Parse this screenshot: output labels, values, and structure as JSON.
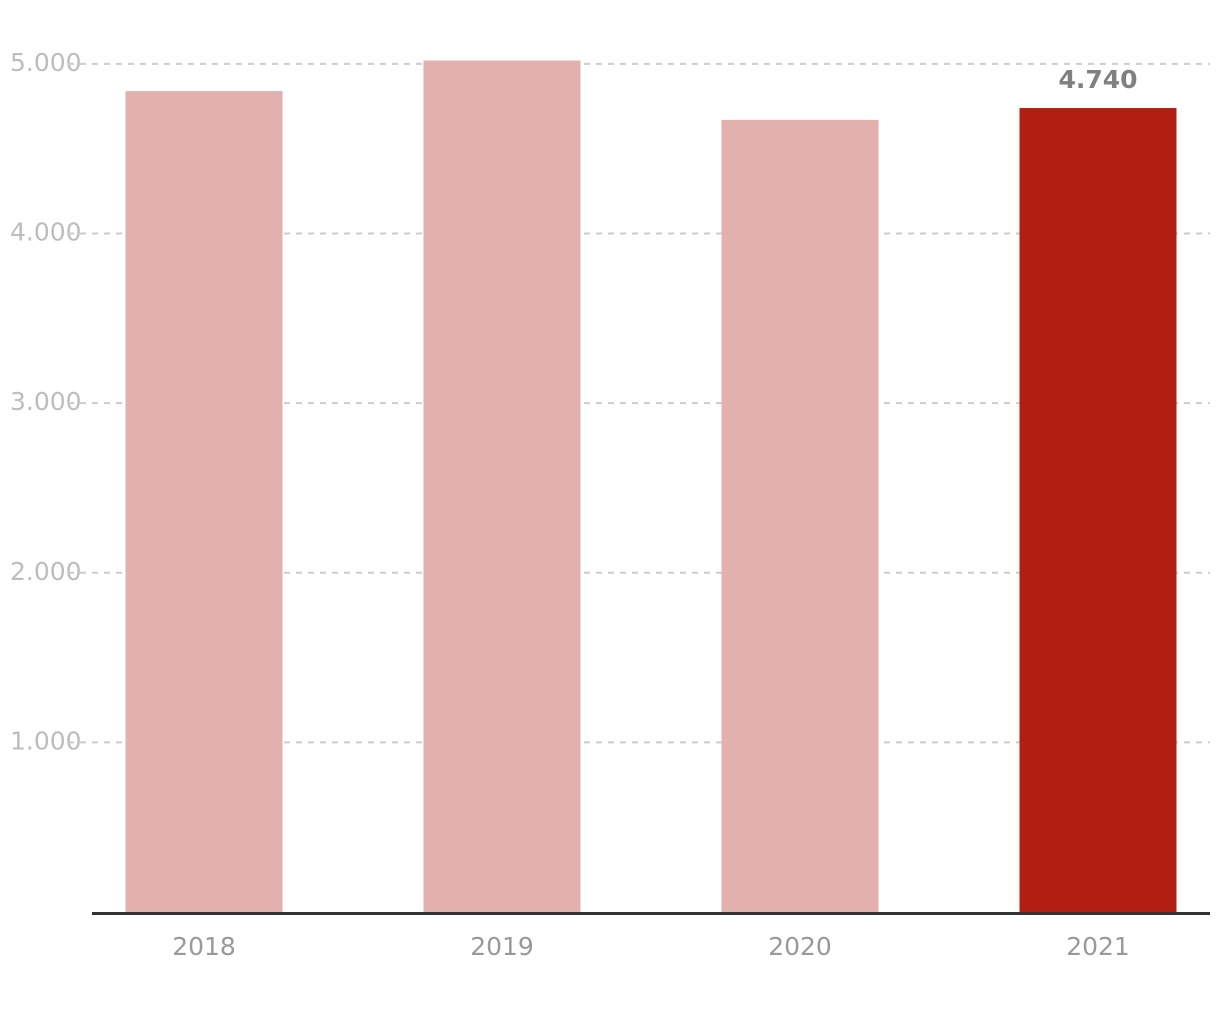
{
  "chart_data": {
    "type": "bar",
    "categories": [
      "2018",
      "2019",
      "2020",
      "2021"
    ],
    "values": [
      4840,
      5020,
      4670,
      4740
    ],
    "value_labels": [
      null,
      null,
      null,
      "4.740"
    ],
    "colors": [
      "#e3b1ad",
      "#e3b1ad",
      "#e3b1ad",
      "#b31e12"
    ],
    "ylim": [
      0,
      5200
    ],
    "yticks": [
      {
        "value": 1000,
        "label": "1.000"
      },
      {
        "value": 2000,
        "label": "2.000"
      },
      {
        "value": 3000,
        "label": "3.000"
      },
      {
        "value": 4000,
        "label": "4.000"
      },
      {
        "value": 5000,
        "label": "5.000"
      }
    ],
    "grid": true
  }
}
